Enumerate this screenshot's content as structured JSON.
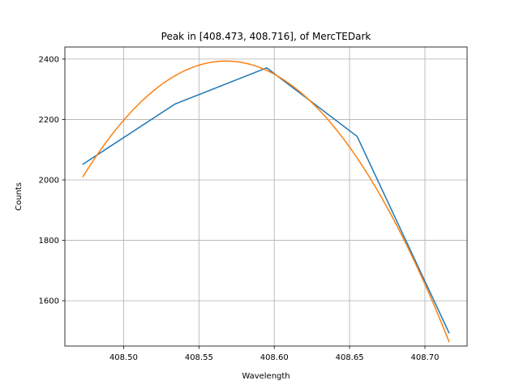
{
  "chart_data": {
    "type": "line",
    "title": "Peak in [408.473, 408.716], of MercTEDark",
    "xlabel": "Wavelength",
    "ylabel": "Counts",
    "xlim": [
      408.461,
      408.728
    ],
    "ylim": [
      1450,
      2440
    ],
    "xticks": [
      408.5,
      408.55,
      408.6,
      408.65,
      408.7
    ],
    "xtick_labels": [
      "408.50",
      "408.55",
      "408.60",
      "408.65",
      "408.70"
    ],
    "yticks": [
      1600,
      1800,
      2000,
      2200,
      2400
    ],
    "ytick_labels": [
      "1600",
      "1800",
      "2000",
      "2200",
      "2400"
    ],
    "grid": true,
    "series": [
      {
        "color": "#1f77b4",
        "x": [
          408.473,
          408.534,
          408.595,
          408.655,
          408.716
        ],
        "y": [
          2052,
          2251,
          2371,
          2144,
          1494
        ]
      },
      {
        "color": "#ff7f0e",
        "fit": {
          "a": -42.4,
          "b": 2393.5,
          "c": 0.568,
          "x_from": 408.473,
          "x_to": 408.716,
          "samples": 120
        }
      }
    ]
  }
}
